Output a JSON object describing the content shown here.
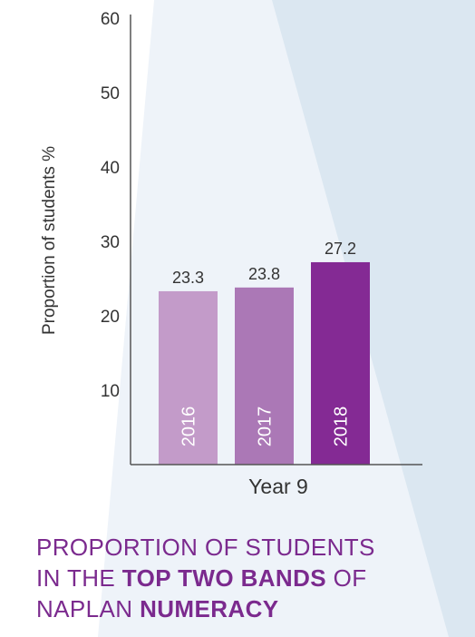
{
  "chart_data": {
    "type": "bar",
    "categories": [
      "2016",
      "2017",
      "2018"
    ],
    "values": [
      23.3,
      23.8,
      27.2
    ],
    "value_labels": [
      "23.3",
      "23.8",
      "27.2"
    ],
    "colors": [
      "#c39bc9",
      "#ab78b6",
      "#842a94"
    ],
    "xlabel": "Year 9",
    "ylabel": "Proportion of students %",
    "ylim": [
      0,
      60
    ],
    "yticks": [
      10,
      20,
      30,
      40,
      50,
      60
    ],
    "grid": false,
    "legend": "none"
  },
  "caption": {
    "line1": "PROPORTION OF STUDENTS",
    "line2_prefix": "IN THE ",
    "line2_bold": "TOP TWO BANDS",
    "line2_suffix": " OF",
    "line3_prefix": "NAPLAN ",
    "line3_bold": "NUMERACY"
  },
  "colors": {
    "background_light": "#eef3f9",
    "background_mid": "#dbe7f1",
    "axis": "#555555",
    "caption_text": "#7b2a8e"
  }
}
